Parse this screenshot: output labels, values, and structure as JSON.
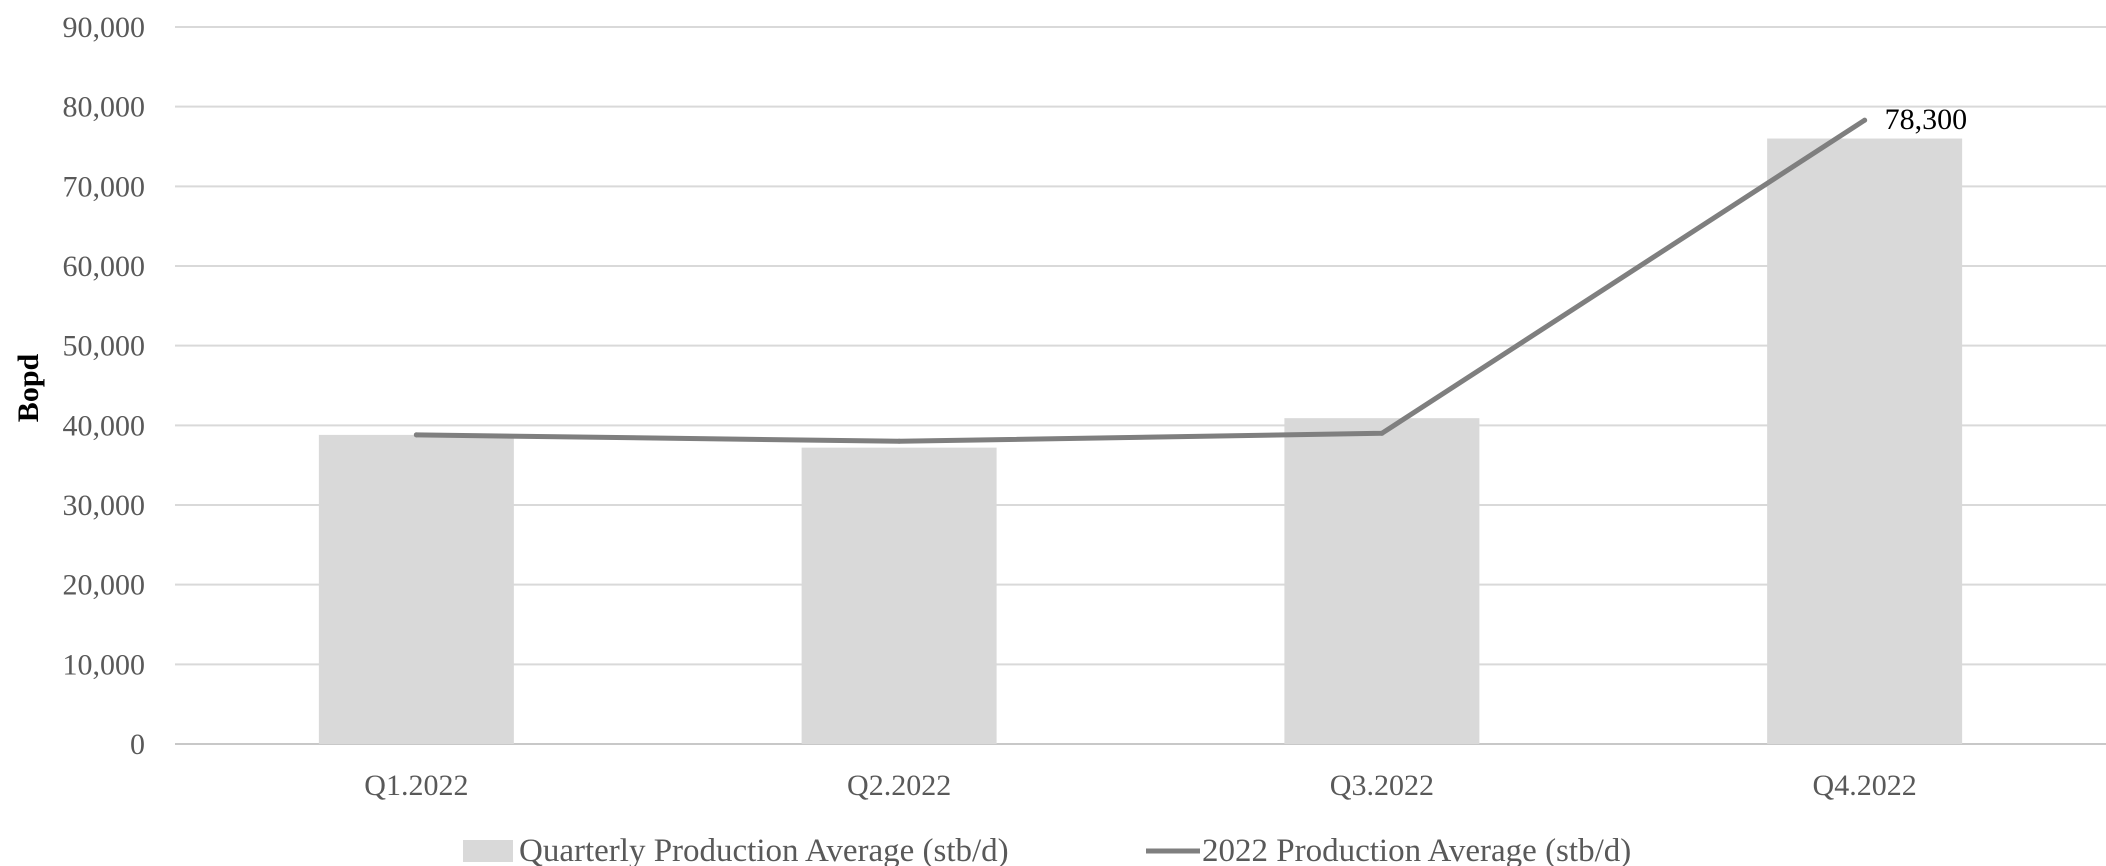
{
  "chart_data": {
    "type": "bar",
    "categories": [
      "Q1.2022",
      "Q2.2022",
      "Q3.2022",
      "Q4.2022"
    ],
    "title": "",
    "xlabel": "",
    "ylabel": "Bopd",
    "ylim": [
      0,
      90000
    ],
    "yticks": [
      0,
      10000,
      20000,
      30000,
      40000,
      50000,
      60000,
      70000,
      80000,
      90000
    ],
    "ytick_labels": [
      "0",
      "10,000",
      "20,000",
      "30,000",
      "40,000",
      "50,000",
      "60,000",
      "70,000",
      "80,000",
      "90,000"
    ],
    "grid": true,
    "legend_position": "bottom",
    "series": [
      {
        "name": "Quarterly Production Average (stb/d)",
        "type": "bar",
        "values": [
          38800,
          37200,
          40900,
          76000
        ],
        "color": "#d9d9d9"
      },
      {
        "name": "2022 Production Average (stb/d)",
        "type": "line",
        "values": [
          38800,
          38000,
          39000,
          78300
        ],
        "color": "#7f7f7f",
        "data_labels": [
          "",
          "",
          "",
          "78,300"
        ]
      }
    ]
  }
}
